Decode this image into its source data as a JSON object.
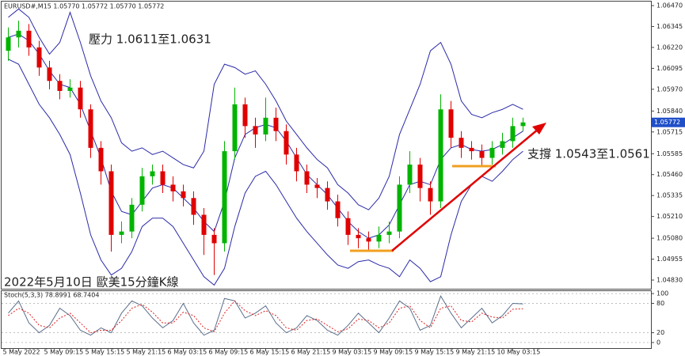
{
  "chart_data": [
    {
      "type": "candlestick",
      "title": "EURUSD#,M15  1.05770 1.05772 1.05770 1.05772",
      "annotations": [
        "壓力 1.0611至1.0631",
        "支撐 1.0543至1.0561",
        "2022年5月10日 歐美15分鐘K線"
      ],
      "categories": [
        null,
        "5 May 2022",
        null,
        null,
        null,
        "5 May 09:15",
        null,
        null,
        null,
        "5 May 15:15",
        null,
        null,
        null,
        "5 May 21:15",
        null,
        null,
        null,
        "6 May 03:15",
        null,
        null,
        null,
        "6 May 09:15",
        null,
        null,
        null,
        "6 May 15:15",
        null,
        null,
        null,
        "6 May 21:15",
        null,
        null,
        null,
        "9 May 03:15",
        null,
        null,
        null,
        "9 May 09:15",
        null,
        null,
        null,
        "9 May 15:15",
        null,
        null,
        null,
        "9 May 21:15",
        null,
        null,
        null,
        "10 May 03:15",
        null
      ],
      "open": [
        1.062,
        1.0628,
        1.0632,
        1.0622,
        1.061,
        1.0602,
        1.0596,
        1.0598,
        1.0585,
        1.0562,
        1.0548,
        1.051,
        1.0512,
        1.0528,
        1.0545,
        1.0548,
        1.054,
        1.0536,
        1.0532,
        1.0522,
        1.051,
        1.0505,
        1.056,
        1.0588,
        1.0575,
        1.057,
        1.058,
        1.0572,
        1.0558,
        1.0548,
        1.054,
        1.0538,
        1.053,
        1.052,
        1.051,
        1.0508,
        1.0506,
        1.051,
        1.0512,
        1.054,
        1.0552,
        1.0538,
        1.053,
        1.0585,
        1.0568,
        1.0562,
        1.056,
        1.0556,
        1.0562,
        1.0566,
        1.0575
      ],
      "high": [
        1.0634,
        1.0638,
        1.0636,
        1.0626,
        1.0614,
        1.0606,
        1.0603,
        1.0602,
        1.0588,
        1.0566,
        1.0552,
        1.0518,
        1.0532,
        1.055,
        1.0552,
        1.0552,
        1.0545,
        1.054,
        1.0536,
        1.0526,
        1.0514,
        1.0566,
        1.0598,
        1.0592,
        1.058,
        1.0592,
        1.0586,
        1.0576,
        1.0562,
        1.0552,
        1.0544,
        1.0542,
        1.0534,
        1.0524,
        1.0514,
        1.0512,
        1.0515,
        1.0518,
        1.0545,
        1.056,
        1.0556,
        1.0542,
        1.0594,
        1.059,
        1.0572,
        1.0566,
        1.0564,
        1.0566,
        1.0571,
        1.058,
        1.058
      ],
      "low": [
        1.0614,
        1.0622,
        1.0617,
        1.0605,
        1.0597,
        1.0591,
        1.0592,
        1.058,
        1.0556,
        1.054,
        1.05,
        1.0505,
        1.0508,
        1.0524,
        1.054,
        1.0535,
        1.053,
        1.0527,
        1.0516,
        1.0498,
        1.0486,
        1.05,
        1.0555,
        1.0568,
        1.0562,
        1.0566,
        1.0566,
        1.0552,
        1.0542,
        1.0535,
        1.0532,
        1.0525,
        1.0515,
        1.0504,
        1.0502,
        1.05,
        1.0502,
        1.0505,
        1.0508,
        1.0535,
        1.053,
        1.0522,
        1.0526,
        1.0562,
        1.0556,
        1.0555,
        1.0551,
        1.0552,
        1.0558,
        1.0562,
        1.0572
      ],
      "close": [
        1.0628,
        1.0632,
        1.0622,
        1.061,
        1.0602,
        1.0596,
        1.0598,
        1.0585,
        1.0562,
        1.0548,
        1.051,
        1.0512,
        1.0528,
        1.0545,
        1.0548,
        1.054,
        1.0536,
        1.0532,
        1.0522,
        1.051,
        1.0505,
        1.056,
        1.0588,
        1.0575,
        1.057,
        1.058,
        1.0572,
        1.0558,
        1.0548,
        1.054,
        1.0538,
        1.053,
        1.052,
        1.051,
        1.0508,
        1.0506,
        1.051,
        1.0512,
        1.054,
        1.0552,
        1.0538,
        1.053,
        1.0585,
        1.0568,
        1.0562,
        1.056,
        1.0556,
        1.0562,
        1.0566,
        1.0575,
        1.05772
      ],
      "up_color": "#00b400",
      "down_color": "#e00000",
      "series": [
        {
          "color": "#2a2aa8",
          "values": [
            1.064,
            1.0645,
            1.064,
            1.0628,
            1.0618,
            1.0625,
            1.0643,
            1.0625,
            1.0605,
            1.059,
            1.058,
            1.0565,
            1.056,
            1.0562,
            1.0558,
            1.056,
            1.0556,
            1.0552,
            1.055,
            1.056,
            1.06,
            1.0612,
            1.061,
            1.0606,
            1.0608,
            1.06,
            1.059,
            1.0578,
            1.057,
            1.0562,
            1.0555,
            1.055,
            1.054,
            1.0535,
            1.0528,
            1.0525,
            1.0532,
            1.0545,
            1.057,
            1.0585,
            1.06,
            1.062,
            1.0625,
            1.0612,
            1.059,
            1.0582,
            1.058,
            1.0583,
            1.0585,
            1.0588,
            1.0585
          ]
        },
        {
          "color": "#2a2aa8",
          "values": [
            1.0628,
            1.063,
            1.0626,
            1.0618,
            1.0608,
            1.06,
            1.0598,
            1.0588,
            1.0572,
            1.0556,
            1.0536,
            1.0524,
            1.0522,
            1.053,
            1.0538,
            1.054,
            1.0538,
            1.0532,
            1.0526,
            1.0518,
            1.0512,
            1.053,
            1.0556,
            1.057,
            1.0574,
            1.0576,
            1.0574,
            1.0566,
            1.0556,
            1.0546,
            1.054,
            1.0534,
            1.0526,
            1.0518,
            1.0512,
            1.0508,
            1.051,
            1.0516,
            1.0528,
            1.054,
            1.0542,
            1.054,
            1.0555,
            1.0562,
            1.0564,
            1.0561,
            1.056,
            1.0561,
            1.0564,
            1.0568,
            1.0572
          ]
        },
        {
          "color": "#2a2aa8",
          "values": [
            1.0615,
            1.0612,
            1.06,
            1.0588,
            1.058,
            1.057,
            1.0558,
            1.0535,
            1.051,
            1.0495,
            1.0486,
            1.049,
            1.05,
            1.0515,
            1.052,
            1.052,
            1.0515,
            1.0505,
            1.0495,
            1.0485,
            1.048,
            1.049,
            1.0515,
            1.0535,
            1.0545,
            1.0548,
            1.054,
            1.053,
            1.052,
            1.0512,
            1.0505,
            1.0498,
            1.0492,
            1.049,
            1.0494,
            1.0495,
            1.0492,
            1.049,
            1.0485,
            1.0495,
            1.049,
            1.0482,
            1.0485,
            1.051,
            1.053,
            1.054,
            1.0545,
            1.0542,
            1.0548,
            1.0555,
            1.056
          ]
        }
      ],
      "ylim": [
        1.04778,
        1.06494
      ],
      "yticks": [
        {
          "value": 1.0647,
          "label": "1.06470"
        },
        1.06345,
        {
          "value": 1.0622,
          "label": "1.06220"
        },
        1.06095,
        {
          "value": 1.0597,
          "label": "1.05970"
        },
        {
          "value": 1.0584,
          "label": "1.05840"
        },
        1.05715,
        1.05585,
        {
          "value": 1.0546,
          "label": "1.05460"
        },
        1.05335,
        {
          "value": 1.0521,
          "label": "1.05210"
        },
        {
          "value": 1.0508,
          "label": "1.05080"
        },
        1.04955,
        {
          "value": 1.0483,
          "label": "1.04830"
        }
      ]
    },
    {
      "type": "line",
      "title": "Stoch(5,3,3) 78.8991 68.7404",
      "series": [
        {
          "color": "#5a6e8a",
          "values": [
            60,
            85,
            40,
            20,
            35,
            70,
            55,
            25,
            15,
            30,
            20,
            60,
            85,
            75,
            50,
            30,
            45,
            80,
            40,
            15,
            25,
            90,
            85,
            50,
            60,
            75,
            40,
            20,
            30,
            55,
            45,
            25,
            15,
            35,
            60,
            40,
            20,
            50,
            85,
            70,
            25,
            35,
            95,
            60,
            30,
            50,
            70,
            40,
            55,
            80,
            79
          ]
        },
        {
          "color": "#e02020",
          "dashed": true,
          "values": [
            55,
            70,
            60,
            35,
            30,
            50,
            60,
            40,
            20,
            25,
            25,
            45,
            70,
            78,
            62,
            40,
            40,
            62,
            55,
            30,
            22,
            60,
            85,
            65,
            55,
            65,
            55,
            30,
            25,
            45,
            48,
            35,
            22,
            28,
            48,
            45,
            30,
            40,
            70,
            75,
            45,
            30,
            70,
            75,
            45,
            42,
            60,
            52,
            50,
            68,
            69
          ]
        }
      ],
      "ylim": [
        -13,
        105
      ],
      "yticks": [
        100,
        80,
        20,
        0
      ]
    }
  ]
}
